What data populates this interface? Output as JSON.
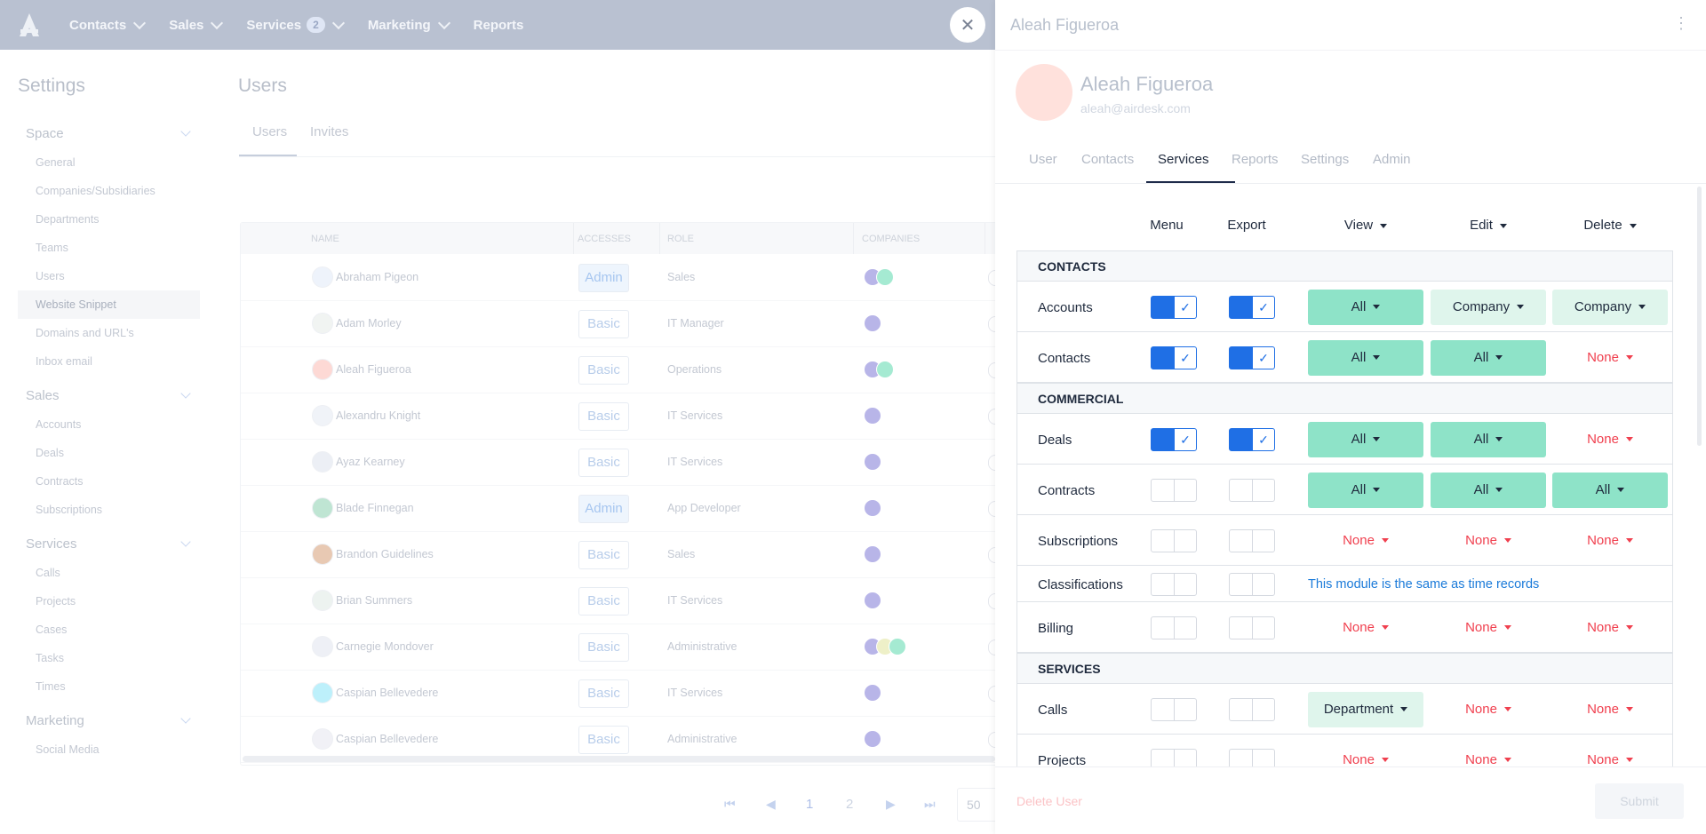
{
  "nav": {
    "items": [
      {
        "label": "Contacts"
      },
      {
        "label": "Sales"
      },
      {
        "label": "Services",
        "badge": 2
      },
      {
        "label": "Marketing"
      },
      {
        "label": "Reports"
      }
    ]
  },
  "sidebar": {
    "title": "Settings",
    "selected": [
      0,
      5
    ],
    "sections": [
      {
        "title": "Space",
        "items": [
          "General",
          "Companies/Subsidiaries",
          "Departments",
          "Teams",
          "Users",
          "Website Snippet",
          "Domains and URL's",
          "Inbox email"
        ]
      },
      {
        "title": "Sales",
        "items": [
          "Accounts",
          "Deals",
          "Contracts",
          "Subscriptions"
        ]
      },
      {
        "title": "Services",
        "items": [
          "Calls",
          "Projects",
          "Cases",
          "Tasks",
          "Times"
        ]
      },
      {
        "title": "Marketing",
        "items": [
          "Social Media"
        ]
      }
    ]
  },
  "users": {
    "title": "Users",
    "tabs": [
      "Users",
      "Invites"
    ],
    "active_tab": 0,
    "columns": [
      "NAME",
      "ACCESSES",
      "ROLE",
      "COMPANIES"
    ],
    "rows": [
      {
        "name": "Abraham Pigeon",
        "access": "Admin",
        "role": "Sales",
        "avatar": "#eef3fb",
        "companies": [
          "#b8b5e8",
          "#a5ead2"
        ]
      },
      {
        "name": "Adam Morley",
        "access": "Basic",
        "role": "IT Manager",
        "avatar": "#f1f4f2",
        "companies": [
          "#b8b5e8"
        ]
      },
      {
        "name": "Aleah Figueroa",
        "access": "Basic",
        "role": "Operations",
        "avatar": "#fdd9d5",
        "companies": [
          "#b8b5e8",
          "#a5ead2"
        ]
      },
      {
        "name": "Alexandru Knight",
        "access": "Basic",
        "role": "IT Services",
        "avatar": "#f0f3f8",
        "companies": [
          "#b8b5e8"
        ]
      },
      {
        "name": "Ayaz Kearney",
        "access": "Basic",
        "role": "IT Services",
        "avatar": "#eceff5",
        "companies": [
          "#b8b5e8"
        ]
      },
      {
        "name": "Blade Finnegan",
        "access": "Admin",
        "role": "App Developer",
        "avatar": "#bfe5d3",
        "companies": [
          "#b8b5e8"
        ]
      },
      {
        "name": "Brandon Guidelines",
        "access": "Basic",
        "role": "Sales",
        "avatar": "#e8c9b3",
        "companies": [
          "#b8b5e8"
        ]
      },
      {
        "name": "Brian Summers",
        "access": "Basic",
        "role": "IT Services",
        "avatar": "#edf3f0",
        "companies": [
          "#b8b5e8"
        ]
      },
      {
        "name": "Carnegie Mondover",
        "access": "Basic",
        "role": "Administrative",
        "avatar": "#eef0f6",
        "companies": [
          "#b8b5e8",
          "#eef0c8",
          "#a5ead2"
        ]
      },
      {
        "name": "Caspian Bellevedere",
        "access": "Basic",
        "role": "IT Services",
        "avatar": "#bdf0fb",
        "companies": [
          "#b8b5e8"
        ]
      },
      {
        "name": "Caspian Bellevedere",
        "access": "Basic",
        "role": "Administrative",
        "avatar": "#f1f1f6",
        "companies": [
          "#b8b5e8"
        ]
      }
    ],
    "pagination": {
      "pages": [
        1,
        2
      ],
      "page_size": 50
    }
  },
  "panel": {
    "header": "Aleah Figueroa",
    "name": "Aleah Figueroa",
    "email": "aleah@airdesk.com",
    "tabs": [
      "User",
      "Contacts",
      "Services",
      "Reports",
      "Settings",
      "Admin"
    ],
    "active_tab": 2,
    "columns": [
      {
        "label": "Menu"
      },
      {
        "label": "Export"
      },
      {
        "label": "View",
        "dropdown": true
      },
      {
        "label": "Edit",
        "dropdown": true
      },
      {
        "label": "Delete",
        "dropdown": true
      }
    ],
    "sections": [
      {
        "title": "CONTACTS",
        "rows": [
          {
            "name": "Accounts",
            "menu": true,
            "export": true,
            "view": {
              "text": "All",
              "fill": "#8ee3c8"
            },
            "edit": {
              "text": "Company",
              "fill": "#dff5ec"
            },
            "delete": {
              "text": "Company",
              "fill": "#dff5ec"
            }
          },
          {
            "name": "Contacts",
            "menu": true,
            "export": true,
            "view": {
              "text": "All",
              "fill": "#8ee3c8"
            },
            "edit": {
              "text": "All",
              "fill": "#8ee3c8"
            },
            "delete": {
              "text": "None",
              "color": "#f0404f"
            }
          }
        ]
      },
      {
        "title": "COMMERCIAL",
        "rows": [
          {
            "name": "Deals",
            "menu": true,
            "export": true,
            "view": {
              "text": "All",
              "fill": "#8ee3c8"
            },
            "edit": {
              "text": "All",
              "fill": "#8ee3c8"
            },
            "delete": {
              "text": "None",
              "color": "#f0404f"
            }
          },
          {
            "name": "Contracts",
            "menu": false,
            "export": false,
            "view": {
              "text": "All",
              "fill": "#8ee3c8"
            },
            "edit": {
              "text": "All",
              "fill": "#8ee3c8"
            },
            "delete": {
              "text": "All",
              "fill": "#8ee3c8"
            }
          },
          {
            "name": "Subscriptions",
            "menu": false,
            "export": false,
            "view": {
              "text": "None",
              "color": "#f0404f"
            },
            "edit": {
              "text": "None",
              "color": "#f0404f"
            },
            "delete": {
              "text": "None",
              "color": "#f0404f"
            }
          },
          {
            "name": "Classifications",
            "menu": false,
            "export": false,
            "note": "This module is the same as time records"
          },
          {
            "name": "Billing",
            "menu": false,
            "export": false,
            "view": {
              "text": "None",
              "color": "#f0404f"
            },
            "edit": {
              "text": "None",
              "color": "#f0404f"
            },
            "delete": {
              "text": "None",
              "color": "#f0404f"
            }
          }
        ]
      },
      {
        "title": "SERVICES",
        "rows": [
          {
            "name": "Calls",
            "menu": false,
            "export": false,
            "view": {
              "text": "Department",
              "fill": "#dff5ec"
            },
            "edit": {
              "text": "None",
              "color": "#f0404f"
            },
            "delete": {
              "text": "None",
              "color": "#f0404f"
            }
          },
          {
            "name": "Projects",
            "menu": false,
            "export": false,
            "view": {
              "text": "None",
              "color": "#f0404f"
            },
            "edit": {
              "text": "None",
              "color": "#f0404f"
            },
            "delete": {
              "text": "None",
              "color": "#f0404f"
            }
          }
        ]
      }
    ],
    "delete_label": "Delete User",
    "submit_label": "Submit"
  }
}
